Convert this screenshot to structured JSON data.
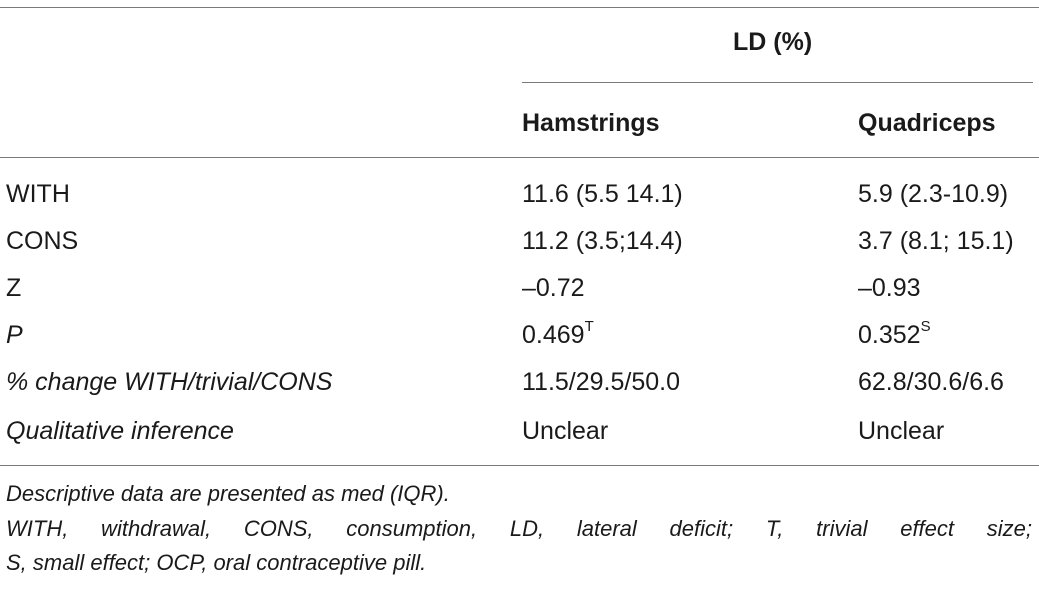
{
  "table": {
    "group_header": "LD (%)",
    "columns": [
      "Hamstrings",
      "Quadriceps"
    ],
    "rows": [
      {
        "label": "WITH",
        "italic": false,
        "hamstrings": "11.6 (5.5 14.1)",
        "quadriceps": "5.9 (2.3-10.9)"
      },
      {
        "label": "CONS",
        "italic": false,
        "hamstrings": "11.2 (3.5;14.4)",
        "quadriceps": "3.7 (8.1; 15.1)"
      },
      {
        "label": "Z",
        "italic": false,
        "hamstrings": "–0.72",
        "quadriceps": "–0.93"
      },
      {
        "label": "P",
        "italic": true,
        "hamstrings": "0.469",
        "hamstrings_sup": "T",
        "quadriceps": "0.352",
        "quadriceps_sup": "S"
      },
      {
        "label": "% change WITH/trivial/CONS",
        "italic": true,
        "hamstrings": "11.5/29.5/50.0",
        "quadriceps": "62.8/30.6/6.6"
      },
      {
        "label": "Qualitative inference",
        "italic": true,
        "hamstrings": "Unclear",
        "quadriceps": "Unclear"
      }
    ]
  },
  "footnotes": {
    "line1": "Descriptive data are presented as med (IQR).",
    "line2": "WITH, withdrawal, CONS, consumption, LD, lateral deficit; T, trivial effect size;",
    "line3": "S, small effect; OCP, oral contraceptive pill."
  }
}
